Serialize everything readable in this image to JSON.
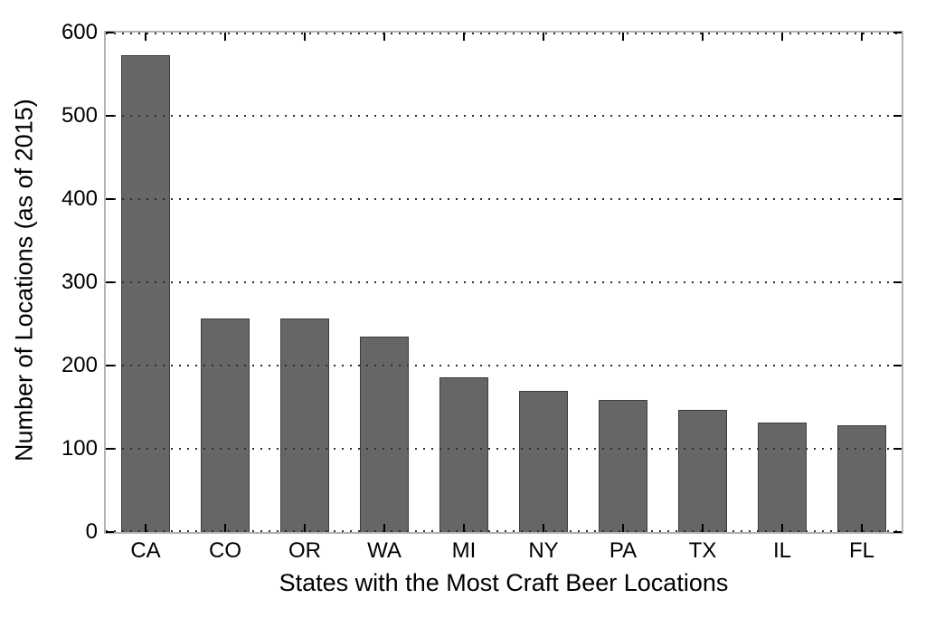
{
  "chart_data": {
    "type": "bar",
    "categories": [
      "CA",
      "CO",
      "OR",
      "WA",
      "MI",
      "NY",
      "PA",
      "TX",
      "IL",
      "FL"
    ],
    "values": [
      573,
      257,
      256,
      235,
      186,
      170,
      159,
      147,
      131,
      128
    ],
    "title": "",
    "xlabel": "States with the Most Craft Beer Locations",
    "ylabel": "Number of Locations (as of 2015)",
    "ylim": [
      0,
      600
    ],
    "yticks": [
      0,
      100,
      200,
      300,
      400,
      500,
      600
    ],
    "grid": "horizontal dotted, drawn above bars",
    "legend": "none",
    "colors": {
      "bar_fill": "#666666",
      "bar_edge": "#3d3d3d",
      "spine": "#b3b3b3",
      "grid": "#2e2e2e",
      "tick": "#000000",
      "text": "#000000",
      "background": "#ffffff"
    }
  }
}
